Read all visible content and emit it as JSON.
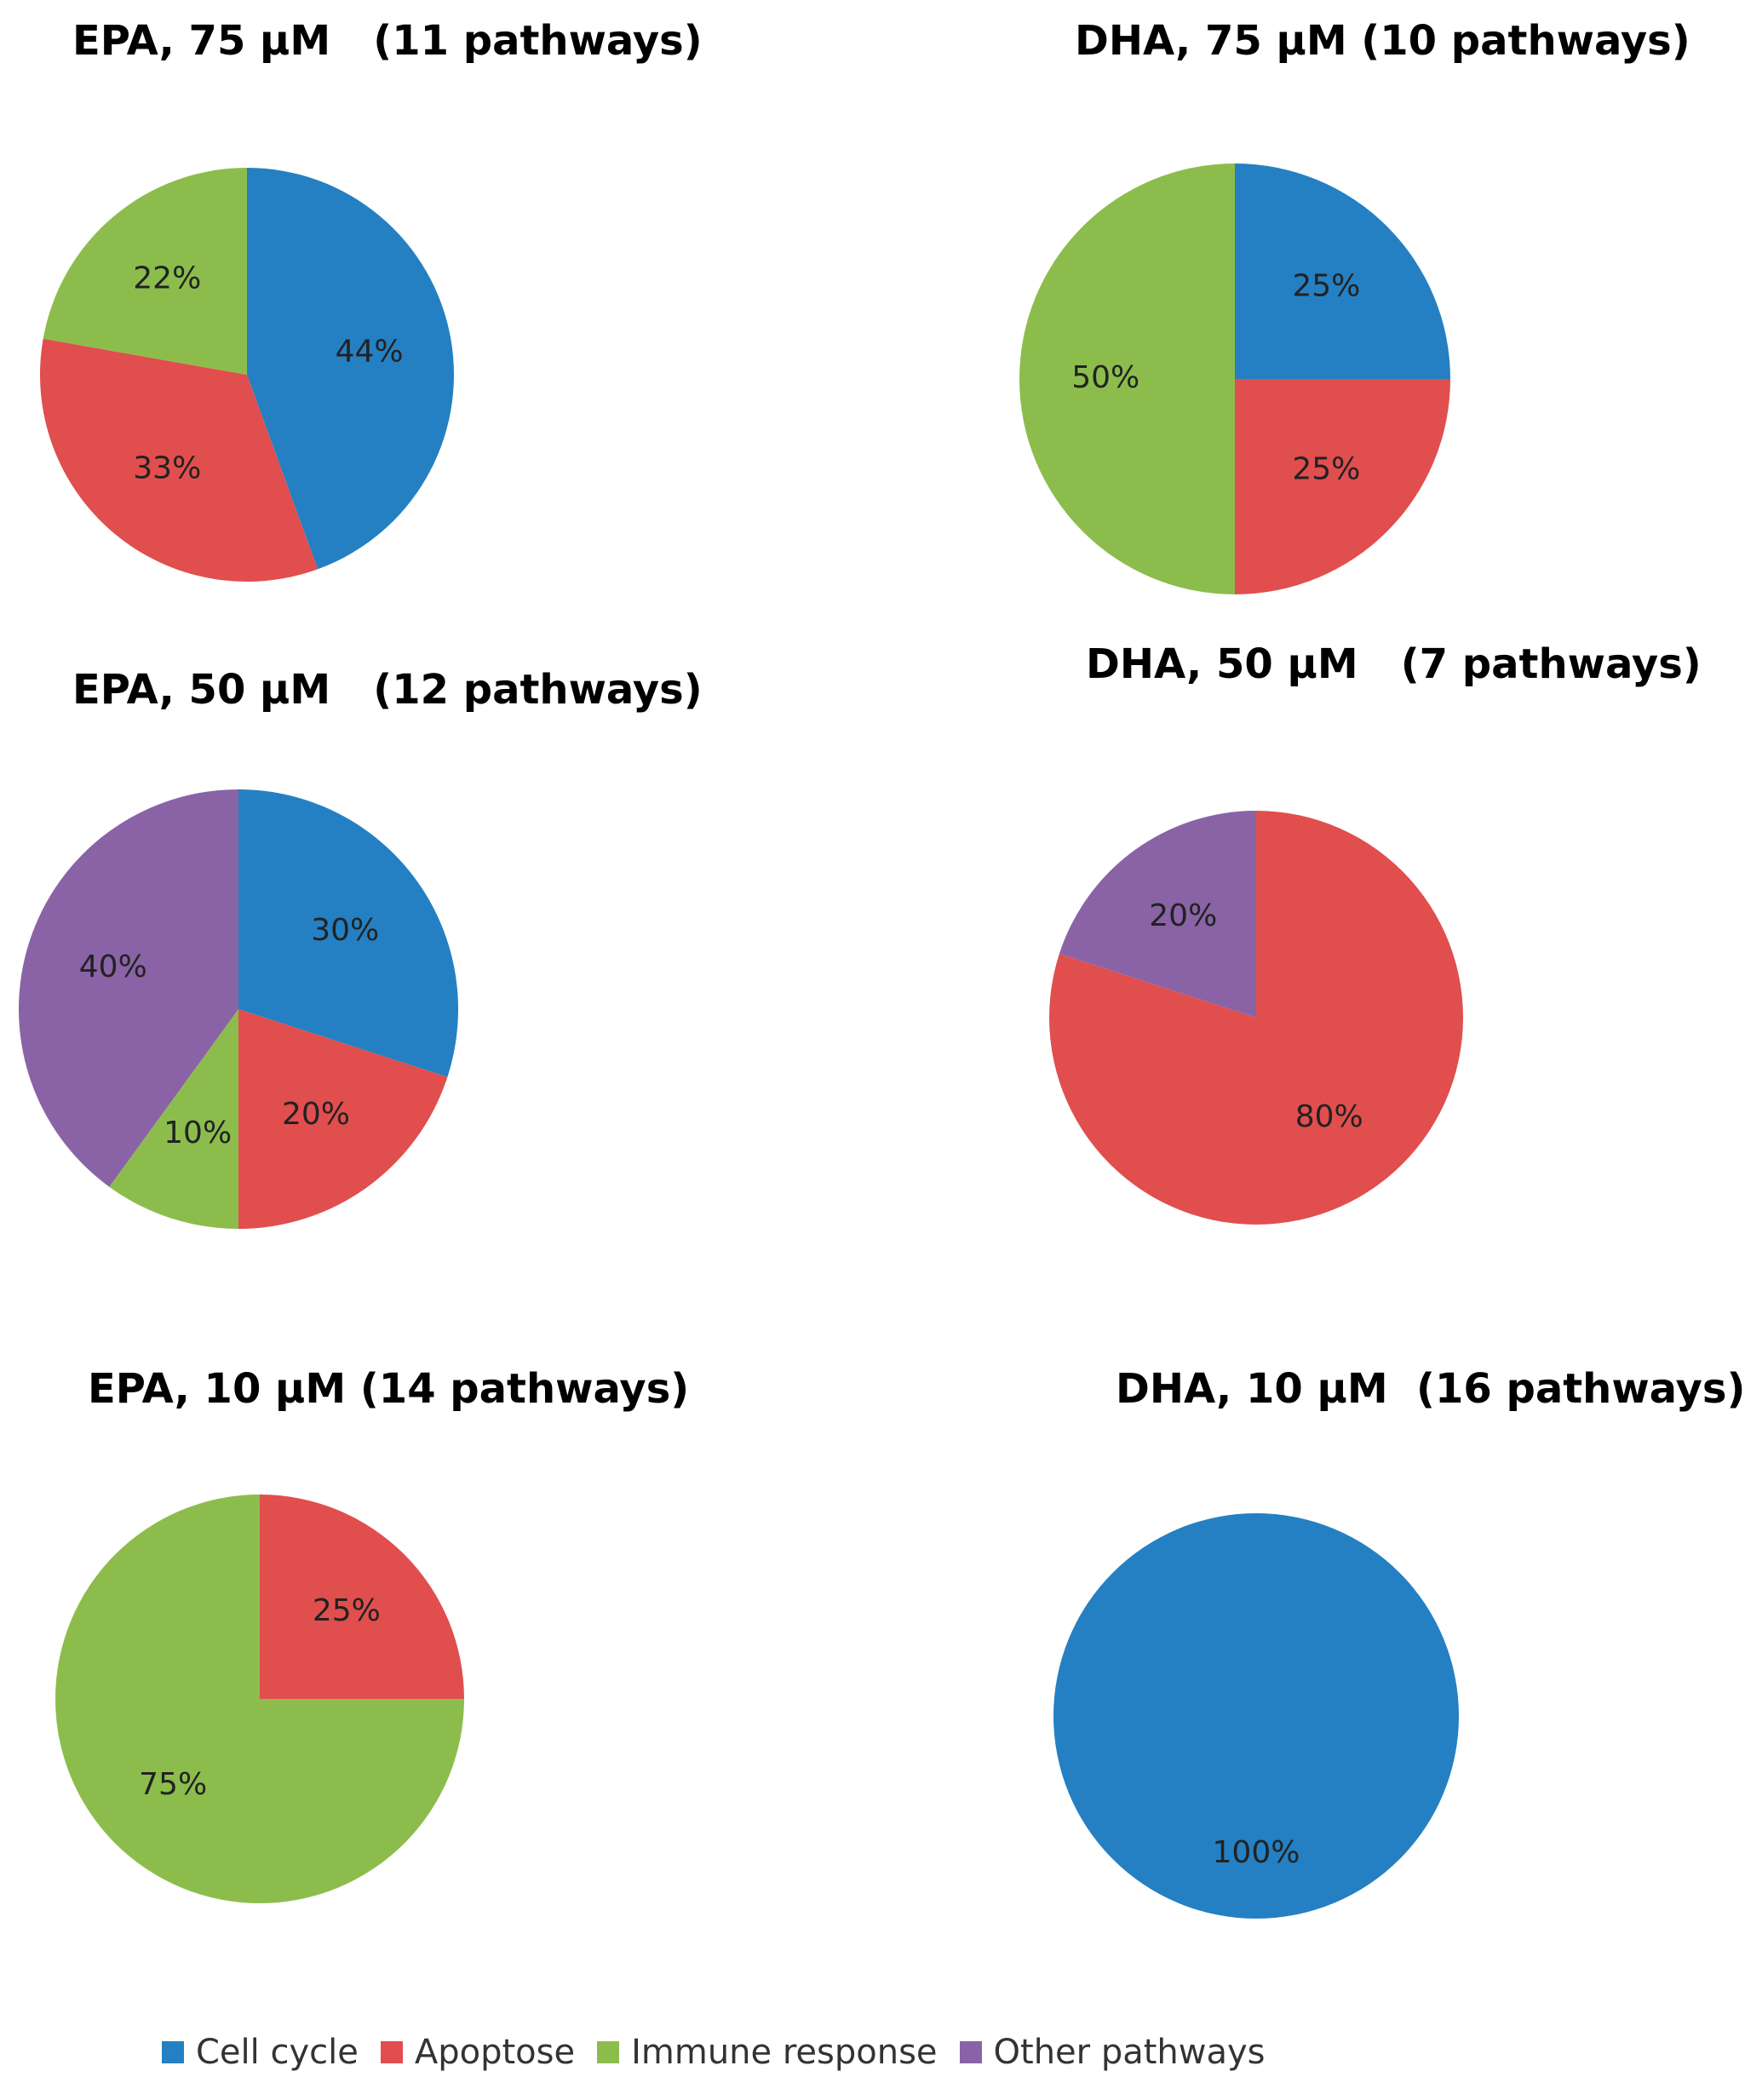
{
  "colors": {
    "Cell cycle": "#2480c2",
    "Apoptose": "#e14e4e",
    "Immune response": "#8cbd4c",
    "Other pathways": "#8a63a6"
  },
  "legend": {
    "items": [
      {
        "label": "Cell cycle",
        "color": "#2480c2"
      },
      {
        "label": "Apoptose",
        "color": "#e14e4e"
      },
      {
        "label": "Immune response",
        "color": "#8cbd4c"
      },
      {
        "label": "Other pathways",
        "color": "#8a63a6"
      }
    ]
  },
  "chart_data": [
    {
      "type": "pie",
      "title": "EPA, 75 µM   (11 pathways)",
      "categories": [
        "Cell cycle",
        "Apoptose",
        "Immune response"
      ],
      "values": [
        44,
        33,
        22
      ],
      "labels": [
        "44%",
        "33%",
        "22%"
      ]
    },
    {
      "type": "pie",
      "title": "DHA, 75 µM (10 pathways)",
      "categories": [
        "Cell cycle",
        "Apoptose",
        "Immune response"
      ],
      "values": [
        25,
        25,
        50
      ],
      "labels": [
        "25%",
        "25%",
        "50%"
      ]
    },
    {
      "type": "pie",
      "title": "EPA, 50 µM   (12 pathways)",
      "categories": [
        "Cell cycle",
        "Apoptose",
        "Immune response",
        "Other pathways"
      ],
      "values": [
        30,
        20,
        10,
        40
      ],
      "labels": [
        "30%",
        "20%",
        "10%",
        "40%"
      ]
    },
    {
      "type": "pie",
      "title": "DHA, 50 µM   (7 pathways)",
      "categories": [
        "Apoptose",
        "Other pathways"
      ],
      "values": [
        80,
        20
      ],
      "labels": [
        "80%",
        "20%"
      ]
    },
    {
      "type": "pie",
      "title": "EPA, 10 µM (14 pathways)",
      "categories": [
        "Apoptose",
        "Immune response"
      ],
      "values": [
        25,
        75
      ],
      "labels": [
        "25%",
        "75%"
      ]
    },
    {
      "type": "pie",
      "title": "DHA, 10 µM  (16 pathways)",
      "categories": [
        "Cell cycle"
      ],
      "values": [
        100
      ],
      "labels": [
        "100%"
      ]
    }
  ]
}
